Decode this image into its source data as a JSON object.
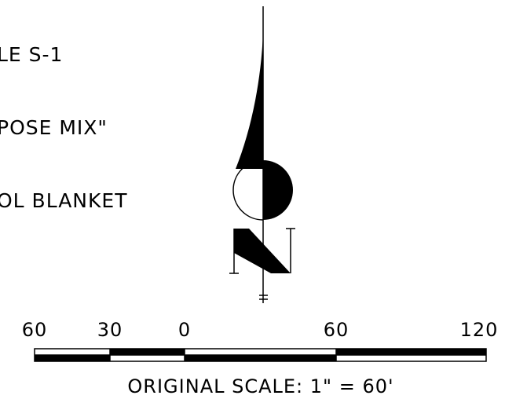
{
  "note_lines": [
    "LE S-1",
    "POSE MIX\"",
    "OL BLANKET"
  ],
  "north_arrow": {
    "label": "N"
  },
  "scale_bar": {
    "tick_labels": [
      "60",
      "30",
      "0",
      "60",
      "120"
    ],
    "caption": "ORIGINAL SCALE:  1\"  =  60'"
  },
  "colors": {
    "ink": "#000000",
    "paper": "#ffffff"
  }
}
